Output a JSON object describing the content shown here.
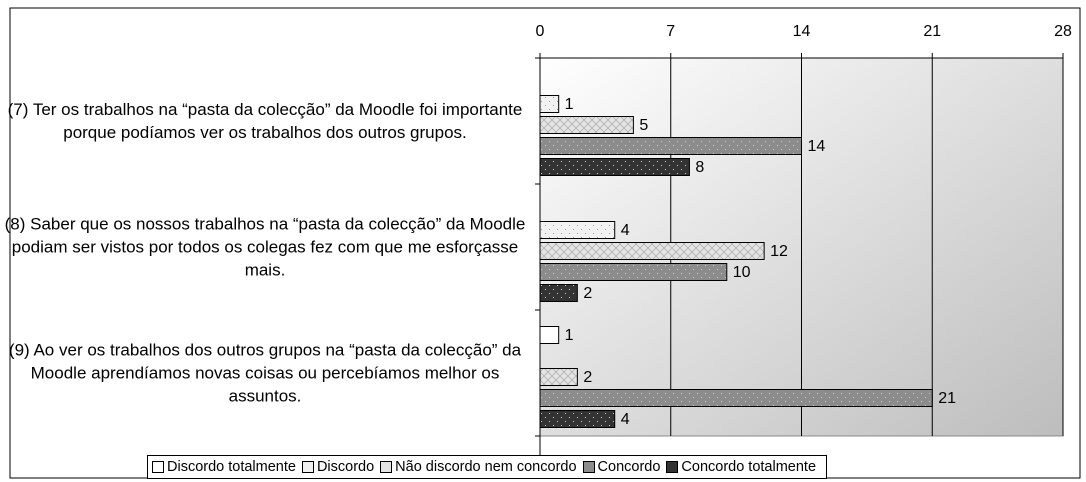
{
  "chart_data": {
    "type": "hbar",
    "categories": [
      "(7)      Ter os trabalhos na “pasta da colecção” da Moodle foi importante porque podíamos ver os trabalhos dos outros grupos.",
      "(8)      Saber que os nossos trabalhos na “pasta da colecção” da Moodle podiam ser vistos por todos os colegas fez com que me esforçasse mais.",
      "(9)      Ao ver os trabalhos dos outros grupos na “pasta da colecção” da Moodle aprendíamos novas coisas ou percebíamos melhor os assuntos."
    ],
    "series": [
      {
        "name": "Discordo totalmente",
        "color": "#ffffff",
        "values": [
          0,
          0,
          1
        ],
        "value_labels": [
          null,
          null,
          "1"
        ]
      },
      {
        "name": "Discordo",
        "color": "#f2f2f2",
        "values": [
          1,
          4,
          0
        ],
        "value_labels": [
          "1",
          "4",
          null
        ]
      },
      {
        "name": "Não discordo nem concordo",
        "color": "#e4e4e4",
        "values": [
          5,
          12,
          2
        ],
        "value_labels": [
          "5",
          "12",
          "2"
        ]
      },
      {
        "name": "Concordo",
        "color": "#8c8c8c",
        "values": [
          14,
          10,
          21
        ],
        "value_labels": [
          "14",
          "10",
          "21"
        ]
      },
      {
        "name": "Concordo totalmente",
        "color": "#333333",
        "values": [
          8,
          2,
          4
        ],
        "value_labels": [
          "8",
          "2",
          "4"
        ]
      }
    ],
    "xlim": [
      0,
      28
    ],
    "xticks": [
      0,
      7,
      14,
      21,
      28
    ],
    "grid": true
  }
}
